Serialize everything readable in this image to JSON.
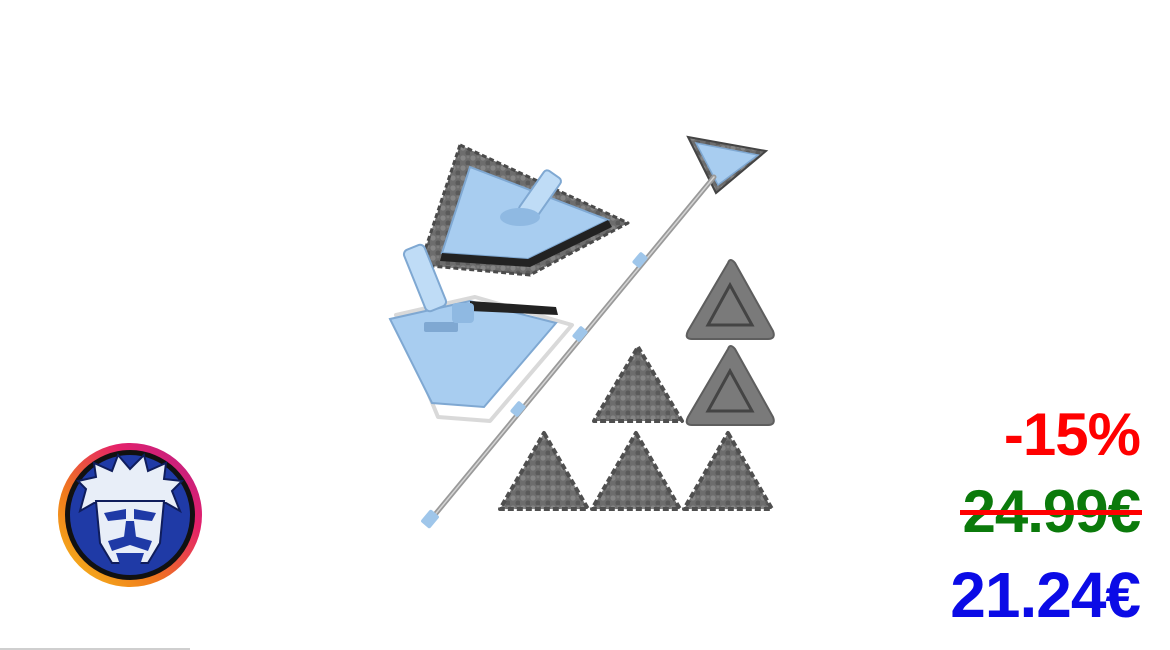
{
  "product": {
    "image_icon": "triangle-mop-set-image",
    "handle_color": "#9fc6ea",
    "pad_color": "#6f6f6f"
  },
  "brand": {
    "logo_icon": "bearded-mascot-face-icon",
    "ring_colors": [
      "#f6c21a",
      "#f07a1c",
      "#e4206a",
      "#b21f8c"
    ],
    "face_bg": "#1f3aa6"
  },
  "pricing": {
    "discount": "-15%",
    "old_price": "24.99€",
    "new_price": "21.24€",
    "discount_color": "#ff0000",
    "old_price_color": "#0b7a0b",
    "strike_color": "#ff0000",
    "new_price_color": "#0b0be6"
  }
}
